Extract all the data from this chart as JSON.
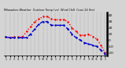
{
  "title": "Milwaukee Weather  Outdoor Temp (vs)  Wind Chill  (Last 24 Hrs)",
  "bg_color": "#d4d4d4",
  "plot_bg_color": "#d4d4d4",
  "grid_color": "#888888",
  "ylim": [
    -25,
    45
  ],
  "yticks": [
    40,
    30,
    20,
    10,
    0,
    -10,
    -20
  ],
  "time_labels": [
    "1",
    "2",
    "3",
    "4",
    "5",
    "6",
    "7",
    "8",
    "9",
    "10",
    "11",
    "12",
    "1",
    "2",
    "3",
    "4",
    "5",
    "6",
    "7",
    "8",
    "9",
    "10",
    "11",
    "12",
    "1"
  ],
  "temp_color": "#ff0000",
  "windchill_color": "#0000cc",
  "temp_values": [
    5,
    4,
    5,
    5,
    5,
    14,
    22,
    30,
    34,
    38,
    38,
    34,
    33,
    33,
    33,
    30,
    20,
    14,
    8,
    8,
    10,
    6,
    2,
    -8,
    -20
  ],
  "windchill_values": [
    5,
    4,
    4,
    4,
    4,
    4,
    10,
    18,
    26,
    30,
    30,
    24,
    24,
    24,
    24,
    18,
    10,
    4,
    0,
    -4,
    -6,
    -8,
    -10,
    -16,
    -22
  ]
}
